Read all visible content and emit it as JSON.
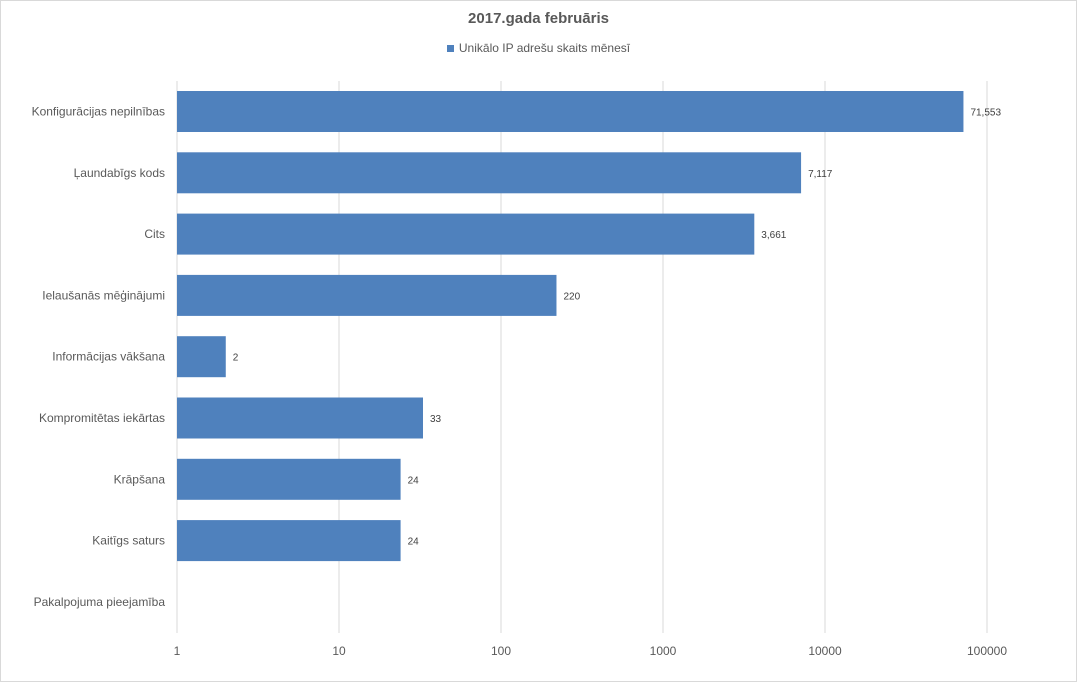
{
  "chart_data": {
    "type": "bar",
    "orientation": "horizontal",
    "title": "2017.gada februāris",
    "categories": [
      "Konfigurācijas nepilnības",
      "Ļaundabīgs kods",
      "Cits",
      "Ielaušanās mēģinājumi",
      "Informācijas vākšana",
      "Kompromitētas iekārtas",
      "Krāpšana",
      "Kaitīgs saturs",
      "Pakalpojuma pieejamība"
    ],
    "series": [
      {
        "name": "Unikālo IP adrešu skaits mēnesī",
        "values": [
          71553,
          7117,
          3661,
          220,
          2,
          33,
          24,
          24,
          null
        ],
        "labels": [
          "71,553",
          "7,117",
          "3,661",
          "220",
          "2",
          "33",
          "24",
          "24",
          ""
        ]
      }
    ],
    "x_scale": "log",
    "xlim": [
      1,
      100000
    ],
    "x_ticks": [
      "1",
      "10",
      "100",
      "1000",
      "10000",
      "100000"
    ],
    "x_tick_values": [
      1,
      10,
      100,
      1000,
      10000,
      100000
    ],
    "grid": "vertical",
    "legend_position": "top",
    "bar_color": "#4f81bd",
    "grid_color": "#d9d9d9",
    "text_color": "#595959"
  }
}
